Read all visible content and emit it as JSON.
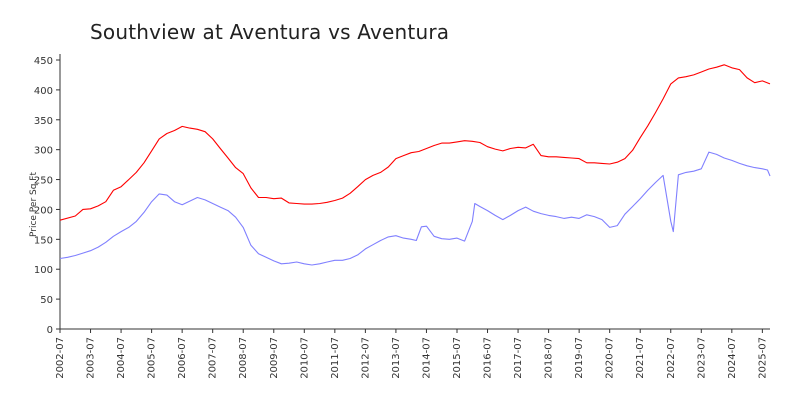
{
  "chart_data": {
    "type": "line",
    "title": "Southview at Aventura vs Aventura",
    "xlabel": "",
    "ylabel": "Price Per Sq Ft",
    "ylim": [
      0,
      450
    ],
    "yticks": [
      0,
      50,
      100,
      150,
      200,
      250,
      300,
      350,
      400,
      450
    ],
    "xlim": [
      "2002-07",
      "2025-10"
    ],
    "xticks": [
      "2002-07",
      "2003-07",
      "2004-07",
      "2005-07",
      "2006-07",
      "2007-07",
      "2008-07",
      "2009-07",
      "2010-07",
      "2011-07",
      "2012-07",
      "2013-07",
      "2014-07",
      "2015-07",
      "2016-07",
      "2017-07",
      "2018-07",
      "2019-07",
      "2020-07",
      "2021-07",
      "2022-07",
      "2023-07",
      "2024-07",
      "2025-07"
    ],
    "grid": false,
    "legend": "none",
    "series": [
      {
        "color": "#ff0000",
        "points": [
          [
            "2002-07",
            182
          ],
          [
            "2003-01",
            189
          ],
          [
            "2003-04",
            200
          ],
          [
            "2003-07",
            201
          ],
          [
            "2003-10",
            206
          ],
          [
            "2004-01",
            213
          ],
          [
            "2004-04",
            232
          ],
          [
            "2004-07",
            238
          ],
          [
            "2004-10",
            250
          ],
          [
            "2005-01",
            262
          ],
          [
            "2005-04",
            278
          ],
          [
            "2005-07",
            298
          ],
          [
            "2005-10",
            318
          ],
          [
            "2006-01",
            327
          ],
          [
            "2006-04",
            332
          ],
          [
            "2006-07",
            339
          ],
          [
            "2006-10",
            336
          ],
          [
            "2007-01",
            334
          ],
          [
            "2007-04",
            330
          ],
          [
            "2007-07",
            318
          ],
          [
            "2007-10",
            302
          ],
          [
            "2008-01",
            286
          ],
          [
            "2008-04",
            270
          ],
          [
            "2008-07",
            260
          ],
          [
            "2008-10",
            236
          ],
          [
            "2009-01",
            220
          ],
          [
            "2009-04",
            220
          ],
          [
            "2009-07",
            218
          ],
          [
            "2009-10",
            219
          ],
          [
            "2010-01",
            211
          ],
          [
            "2010-04",
            210
          ],
          [
            "2010-07",
            209
          ],
          [
            "2010-10",
            209
          ],
          [
            "2011-01",
            210
          ],
          [
            "2011-04",
            212
          ],
          [
            "2011-07",
            215
          ],
          [
            "2011-10",
            219
          ],
          [
            "2012-01",
            227
          ],
          [
            "2012-04",
            238
          ],
          [
            "2012-07",
            250
          ],
          [
            "2012-10",
            257
          ],
          [
            "2013-01",
            262
          ],
          [
            "2013-04",
            271
          ],
          [
            "2013-07",
            285
          ],
          [
            "2013-10",
            290
          ],
          [
            "2014-01",
            295
          ],
          [
            "2014-04",
            297
          ],
          [
            "2014-07",
            302
          ],
          [
            "2014-10",
            307
          ],
          [
            "2015-01",
            311
          ],
          [
            "2015-04",
            311
          ],
          [
            "2015-07",
            313
          ],
          [
            "2015-10",
            315
          ],
          [
            "2016-01",
            314
          ],
          [
            "2016-04",
            312
          ],
          [
            "2016-07",
            305
          ],
          [
            "2016-10",
            301
          ],
          [
            "2017-01",
            298
          ],
          [
            "2017-04",
            302
          ],
          [
            "2017-07",
            304
          ],
          [
            "2017-10",
            303
          ],
          [
            "2018-01",
            309
          ],
          [
            "2018-04",
            290
          ],
          [
            "2018-07",
            288
          ],
          [
            "2018-10",
            288
          ],
          [
            "2019-01",
            287
          ],
          [
            "2019-04",
            286
          ],
          [
            "2019-07",
            285
          ],
          [
            "2019-10",
            278
          ],
          [
            "2020-01",
            278
          ],
          [
            "2020-04",
            277
          ],
          [
            "2020-07",
            276
          ],
          [
            "2020-10",
            279
          ],
          [
            "2021-01",
            285
          ],
          [
            "2021-04",
            299
          ],
          [
            "2021-07",
            320
          ],
          [
            "2021-10",
            340
          ],
          [
            "2022-01",
            362
          ],
          [
            "2022-04",
            385
          ],
          [
            "2022-07",
            410
          ],
          [
            "2022-10",
            420
          ],
          [
            "2023-01",
            422
          ],
          [
            "2023-04",
            425
          ],
          [
            "2023-07",
            430
          ],
          [
            "2023-10",
            435
          ],
          [
            "2024-01",
            438
          ],
          [
            "2024-04",
            442
          ],
          [
            "2024-07",
            437
          ],
          [
            "2024-10",
            434
          ],
          [
            "2025-01",
            420
          ],
          [
            "2025-04",
            412
          ],
          [
            "2025-07",
            415
          ],
          [
            "2025-10",
            410
          ]
        ]
      },
      {
        "color": "#8080ff",
        "points": [
          [
            "2002-07",
            118
          ],
          [
            "2002-10",
            120
          ],
          [
            "2003-01",
            123
          ],
          [
            "2003-04",
            127
          ],
          [
            "2003-07",
            131
          ],
          [
            "2003-10",
            137
          ],
          [
            "2004-01",
            145
          ],
          [
            "2004-04",
            155
          ],
          [
            "2004-07",
            163
          ],
          [
            "2004-10",
            170
          ],
          [
            "2005-01",
            180
          ],
          [
            "2005-04",
            195
          ],
          [
            "2005-07",
            213
          ],
          [
            "2005-10",
            226
          ],
          [
            "2006-01",
            224
          ],
          [
            "2006-04",
            213
          ],
          [
            "2006-07",
            208
          ],
          [
            "2006-10",
            214
          ],
          [
            "2007-01",
            220
          ],
          [
            "2007-04",
            216
          ],
          [
            "2007-07",
            210
          ],
          [
            "2007-10",
            204
          ],
          [
            "2008-01",
            198
          ],
          [
            "2008-04",
            187
          ],
          [
            "2008-07",
            170
          ],
          [
            "2008-10",
            140
          ],
          [
            "2009-01",
            126
          ],
          [
            "2009-04",
            120
          ],
          [
            "2009-07",
            114
          ],
          [
            "2009-10",
            109
          ],
          [
            "2010-01",
            110
          ],
          [
            "2010-04",
            112
          ],
          [
            "2010-07",
            109
          ],
          [
            "2010-10",
            107
          ],
          [
            "2011-01",
            109
          ],
          [
            "2011-04",
            112
          ],
          [
            "2011-07",
            115
          ],
          [
            "2011-10",
            115
          ],
          [
            "2012-01",
            118
          ],
          [
            "2012-04",
            124
          ],
          [
            "2012-07",
            134
          ],
          [
            "2012-10",
            141
          ],
          [
            "2013-01",
            148
          ],
          [
            "2013-04",
            154
          ],
          [
            "2013-07",
            156
          ],
          [
            "2013-10",
            152
          ],
          [
            "2014-01",
            150
          ],
          [
            "2014-03",
            148
          ],
          [
            "2014-05",
            171
          ],
          [
            "2014-07",
            172
          ],
          [
            "2014-10",
            155
          ],
          [
            "2015-01",
            151
          ],
          [
            "2015-04",
            150
          ],
          [
            "2015-07",
            152
          ],
          [
            "2015-10",
            147
          ],
          [
            "2016-01",
            180
          ],
          [
            "2016-02",
            210
          ],
          [
            "2016-04",
            205
          ],
          [
            "2016-07",
            198
          ],
          [
            "2016-10",
            190
          ],
          [
            "2017-01",
            183
          ],
          [
            "2017-04",
            190
          ],
          [
            "2017-07",
            198
          ],
          [
            "2017-10",
            204
          ],
          [
            "2018-01",
            197
          ],
          [
            "2018-04",
            193
          ],
          [
            "2018-07",
            190
          ],
          [
            "2018-10",
            188
          ],
          [
            "2019-01",
            185
          ],
          [
            "2019-04",
            187
          ],
          [
            "2019-07",
            185
          ],
          [
            "2019-10",
            191
          ],
          [
            "2020-01",
            188
          ],
          [
            "2020-04",
            183
          ],
          [
            "2020-07",
            170
          ],
          [
            "2020-10",
            173
          ],
          [
            "2021-01",
            192
          ],
          [
            "2021-04",
            205
          ],
          [
            "2021-07",
            218
          ],
          [
            "2021-10",
            232
          ],
          [
            "2022-01",
            245
          ],
          [
            "2022-04",
            257
          ],
          [
            "2022-07",
            180
          ],
          [
            "2022-08",
            163
          ],
          [
            "2022-10",
            258
          ],
          [
            "2023-01",
            262
          ],
          [
            "2023-04",
            264
          ],
          [
            "2023-07",
            268
          ],
          [
            "2023-10",
            296
          ],
          [
            "2024-01",
            292
          ],
          [
            "2024-04",
            286
          ],
          [
            "2024-07",
            282
          ],
          [
            "2024-10",
            277
          ],
          [
            "2025-01",
            273
          ],
          [
            "2025-04",
            270
          ],
          [
            "2025-07",
            268
          ],
          [
            "2025-09",
            266
          ],
          [
            "2025-10",
            256
          ]
        ]
      }
    ]
  }
}
